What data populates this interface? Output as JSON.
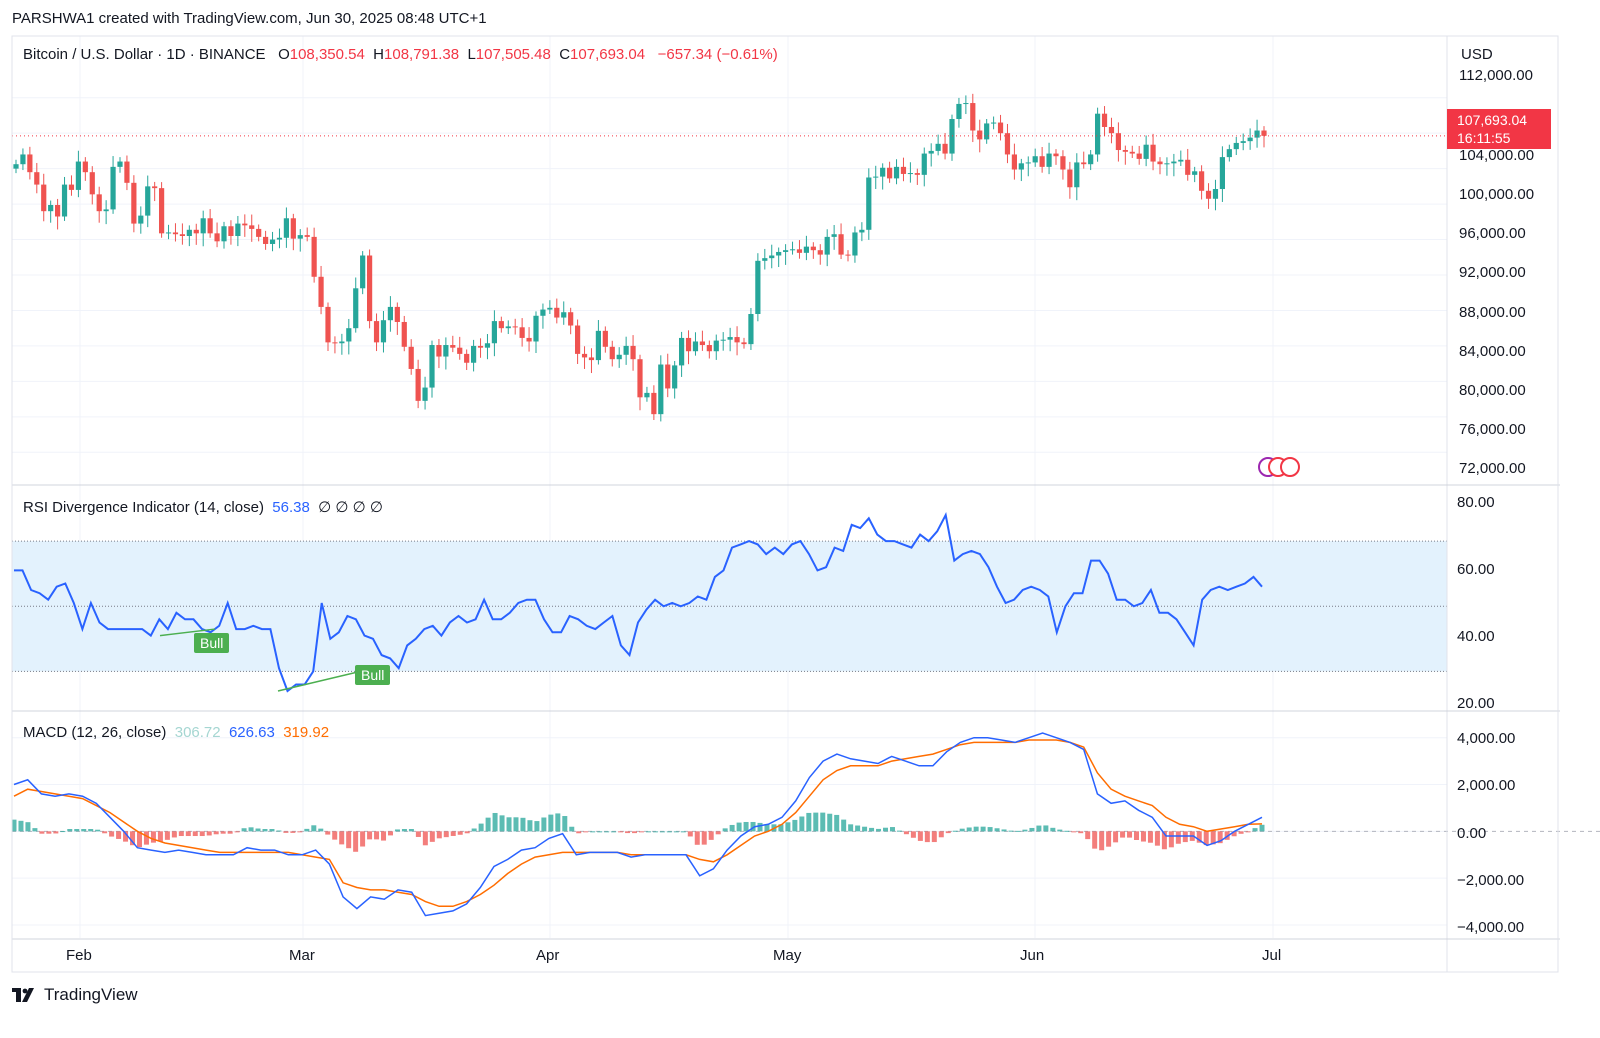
{
  "header": {
    "text": "PARSHWA1 created with TradingView.com, Jun 30, 2025 08:48 UTC+1"
  },
  "main_legend": {
    "symbol": "Bitcoin / U.S. Dollar · 1D · BINANCE",
    "o_label": "O",
    "o_value": "108,350.54",
    "h_label": "H",
    "h_value": "108,791.38",
    "l_label": "L",
    "l_value": "107,505.48",
    "c_label": "C",
    "c_value": "107,693.04",
    "change": "−657.34 (−0.61%)"
  },
  "currency": "USD",
  "price_tag": {
    "price": "107,693.04",
    "countdown": "16:11:55"
  },
  "price_axis": [
    "112,000.00",
    "104,000.00",
    "100,000.00",
    "96,000.00",
    "92,000.00",
    "88,000.00",
    "84,000.00",
    "80,000.00",
    "76,000.00",
    "72,000.00"
  ],
  "rsi_legend": {
    "title": "RSI Divergence Indicator (14, close)",
    "value": "56.38",
    "extras": "∅ ∅ ∅ ∅"
  },
  "rsi_axis": [
    "80.00",
    "60.00",
    "40.00",
    "20.00"
  ],
  "bull_labels": [
    "Bull",
    "Bull"
  ],
  "macd_legend": {
    "title": "MACD (12, 26, close)",
    "hist": "306.72",
    "macd": "626.63",
    "signal": "319.92"
  },
  "macd_axis": [
    "4,000.00",
    "2,000.00",
    "0.00",
    "−2,000.00",
    "−4,000.00"
  ],
  "time_axis": [
    "Feb",
    "Mar",
    "Apr",
    "May",
    "Jun",
    "Jul"
  ],
  "footer": {
    "brand": "TradingView"
  },
  "colors": {
    "up": "#26a69a",
    "down": "#ef5350",
    "rsi": "#2962ff",
    "macd": "#2962ff",
    "signal": "#ff6d00",
    "band": "#e3f2fd",
    "bull": "#4caf50"
  },
  "chart_data": [
    {
      "type": "candlestick",
      "title": "Bitcoin / U.S. Dollar · 1D · BINANCE",
      "ylim": [
        70000,
        114000
      ],
      "x_range": [
        "2025-01-05",
        "2025-06-30"
      ],
      "closes": [
        104500,
        105600,
        103600,
        102200,
        99200,
        99900,
        98600,
        102200,
        101600,
        104800,
        103600,
        101100,
        99200,
        99400,
        104200,
        104800,
        102400,
        97800,
        98700,
        102000,
        101800,
        96700,
        96800,
        96600,
        96400,
        97100,
        96700,
        98400,
        96700,
        95800,
        97500,
        96400,
        97800,
        97600,
        97200,
        96300,
        95500,
        96000,
        96200,
        98400,
        96100,
        96500,
        96300,
        91800,
        88400,
        84400,
        84300,
        84500,
        86000,
        90500,
        94200,
        86800,
        84400,
        86900,
        88400,
        86700,
        83900,
        81400,
        77800,
        79300,
        84100,
        82800,
        84100,
        83800,
        83100,
        82100,
        84000,
        83800,
        84300,
        86800,
        86000,
        86200,
        86100,
        84900,
        84500,
        87400,
        88100,
        88300,
        87200,
        87800,
        86300,
        83100,
        82700,
        82400,
        85700,
        83900,
        82500,
        83000,
        84000,
        82500,
        78200,
        78700,
        76300,
        81900,
        79200,
        81800,
        84900,
        83400,
        84500,
        84100,
        83400,
        84600,
        84700,
        85000,
        84400,
        84200,
        87600,
        93600,
        93900,
        94200,
        94600,
        94800,
        94900,
        94500,
        95200,
        94800,
        94300,
        96300,
        96600,
        94300,
        94200,
        96800,
        97100,
        103000,
        103100,
        104100,
        102900,
        104200,
        103400,
        103500,
        103300,
        105700,
        106000,
        106800,
        105700,
        109600,
        111300,
        111400,
        108300,
        107300,
        109100,
        109200,
        108000,
        105600,
        103900,
        104600,
        104700,
        105400,
        104200,
        105700,
        105400,
        103900,
        101900,
        104700,
        104500,
        105600,
        110200,
        108700,
        108000,
        106100,
        105900,
        105700,
        105100,
        106700,
        104800,
        104500,
        104600,
        104800,
        105000,
        103300,
        103700,
        101500,
        100600,
        101700,
        105300,
        106200,
        106900,
        107100,
        107500,
        108300,
        107700
      ]
    },
    {
      "type": "line",
      "title": "RSI Divergence Indicator (14, close)",
      "ylim": [
        20,
        82
      ],
      "bands": [
        30,
        50,
        70
      ],
      "series": [
        {
          "name": "RSI",
          "values": [
            61,
            61,
            55,
            54,
            52,
            56,
            57,
            51,
            43,
            51,
            45,
            43,
            43,
            43,
            43,
            43,
            41,
            46,
            43,
            48,
            46,
            46,
            43,
            42,
            44,
            51,
            43,
            43,
            44,
            43,
            43,
            31,
            24,
            26,
            26,
            30,
            51,
            40,
            42,
            47,
            46,
            41,
            40,
            35,
            34,
            31,
            38,
            40,
            43,
            44,
            41,
            45,
            47,
            45,
            46,
            52,
            46,
            46,
            48,
            51,
            52,
            52,
            46,
            42,
            42,
            47,
            46,
            44,
            43,
            45,
            47,
            38,
            35,
            45,
            49,
            52,
            50,
            51,
            50,
            51,
            53,
            52,
            59,
            61,
            68,
            69,
            70,
            69,
            66,
            68,
            66,
            69,
            70,
            66,
            61,
            62,
            68,
            67,
            75,
            74,
            77,
            72,
            70,
            70,
            69,
            68,
            72,
            70,
            73,
            78,
            64,
            66,
            67,
            66,
            62,
            56,
            51,
            52,
            55,
            56,
            55,
            53,
            42,
            50,
            54,
            54,
            64,
            64,
            60,
            52,
            52,
            50,
            51,
            55,
            48,
            48,
            46,
            42,
            38,
            52,
            55,
            56,
            55,
            56,
            57,
            59,
            56
          ]
        }
      ]
    },
    {
      "type": "line",
      "title": "MACD (12, 26, close)",
      "ylim": [
        -4300,
        4500
      ],
      "series": [
        {
          "name": "MACD",
          "values": [
            2000,
            2200,
            1600,
            1500,
            1600,
            1500,
            1200,
            600,
            0,
            -700,
            -800,
            -900,
            -800,
            -900,
            -1000,
            -1000,
            -1000,
            -700,
            -800,
            -800,
            -1000,
            -1000,
            -800,
            -1400,
            -2800,
            -3300,
            -2800,
            -2900,
            -2500,
            -2600,
            -3600,
            -3500,
            -3400,
            -3100,
            -2400,
            -1500,
            -1200,
            -800,
            -700,
            -300,
            -100,
            -1000,
            -900,
            -900,
            -900,
            -1100,
            -1000,
            -1000,
            -1000,
            -1000,
            -1900,
            -1600,
            -800,
            -200,
            200,
            300,
            600,
            1300,
            2300,
            3000,
            3300,
            3100,
            3000,
            2900,
            3200,
            3000,
            2800,
            2800,
            3400,
            3800,
            4000,
            4000,
            3900,
            3800,
            4000,
            4200,
            4000,
            3800,
            3500,
            1600,
            1200,
            1300,
            900,
            600,
            -200,
            -200,
            -200,
            -600,
            -400,
            0,
            300,
            600
          ]
        },
        {
          "name": "Signal",
          "values": [
            1500,
            1800,
            1700,
            1600,
            1500,
            1400,
            1100,
            800,
            400,
            0,
            -300,
            -500,
            -600,
            -700,
            -800,
            -900,
            -900,
            -900,
            -900,
            -900,
            -900,
            -1000,
            -1100,
            -1200,
            -2200,
            -2400,
            -2500,
            -2500,
            -2600,
            -2700,
            -3000,
            -3200,
            -3200,
            -3000,
            -2700,
            -2300,
            -1800,
            -1400,
            -1100,
            -1000,
            -900,
            -900,
            -900,
            -900,
            -900,
            -1000,
            -1000,
            -1000,
            -1000,
            -1000,
            -1200,
            -1300,
            -1000,
            -600,
            -200,
            0,
            300,
            800,
            1500,
            2200,
            2600,
            2800,
            2800,
            2800,
            3000,
            3100,
            3200,
            3300,
            3500,
            3700,
            3800,
            3800,
            3800,
            3800,
            3900,
            3900,
            3900,
            3800,
            3600,
            2500,
            1800,
            1500,
            1300,
            1100,
            600,
            300,
            200,
            0,
            100,
            200,
            300,
            320
          ]
        }
      ]
    }
  ]
}
